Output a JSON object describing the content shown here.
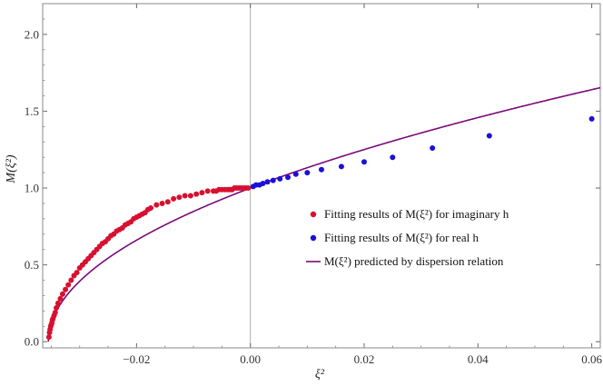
{
  "chart_data": {
    "type": "scatter",
    "xlabel": "ξ²",
    "ylabel": "M(ξ²)",
    "xlim": [
      -0.0365,
      0.0615
    ],
    "ylim": [
      -0.04,
      2.2
    ],
    "x_ticks": [
      -0.02,
      0.0,
      0.02,
      0.04,
      0.06
    ],
    "y_ticks": [
      0.0,
      0.5,
      1.0,
      1.5,
      2.0
    ],
    "x_tick_labels": [
      "−0.02",
      "0.00",
      "0.02",
      "0.04",
      "0.06"
    ],
    "y_tick_labels": [
      "0.0",
      "0.5",
      "1.0",
      "1.5",
      "2.0"
    ],
    "grid": false,
    "reference_line_x": 0.0,
    "legend_position": "center-right",
    "curve_formula_note_hidden": true,
    "x0": -0.0355,
    "series": [
      {
        "name": "Fitting results of M(ξ²) for imaginary h",
        "kind": "scatter",
        "color": "#d81030",
        "x": [
          -0.0354,
          -0.0353,
          -0.0352,
          -0.0351,
          -0.035,
          -0.0349,
          -0.0348,
          -0.0347,
          -0.0345,
          -0.0343,
          -0.0341,
          -0.0338,
          -0.0334,
          -0.033,
          -0.0325,
          -0.032,
          -0.0315,
          -0.031,
          -0.0305,
          -0.03,
          -0.0295,
          -0.029,
          -0.0285,
          -0.028,
          -0.0275,
          -0.027,
          -0.0265,
          -0.026,
          -0.0255,
          -0.025,
          -0.0245,
          -0.024,
          -0.0235,
          -0.023,
          -0.0225,
          -0.022,
          -0.0215,
          -0.021,
          -0.0205,
          -0.02,
          -0.0195,
          -0.019,
          -0.0185,
          -0.018,
          -0.0175,
          -0.0165,
          -0.0155,
          -0.0145,
          -0.0135,
          -0.0125,
          -0.0115,
          -0.0105,
          -0.0095,
          -0.0085,
          -0.0075,
          -0.0065,
          -0.006,
          -0.0055,
          -0.005,
          -0.0045,
          -0.004,
          -0.0036,
          -0.0032,
          -0.0028,
          -0.0024,
          -0.002,
          -0.0016,
          -0.0012,
          -0.0008,
          -0.0004
        ],
        "y": [
          0.03,
          0.06,
          0.08,
          0.1,
          0.11,
          0.12,
          0.14,
          0.15,
          0.17,
          0.19,
          0.22,
          0.25,
          0.28,
          0.31,
          0.34,
          0.37,
          0.4,
          0.43,
          0.45,
          0.48,
          0.5,
          0.52,
          0.54,
          0.56,
          0.58,
          0.6,
          0.62,
          0.64,
          0.65,
          0.67,
          0.69,
          0.7,
          0.72,
          0.73,
          0.74,
          0.76,
          0.77,
          0.78,
          0.8,
          0.81,
          0.82,
          0.83,
          0.84,
          0.86,
          0.87,
          0.89,
          0.9,
          0.91,
          0.93,
          0.94,
          0.95,
          0.95,
          0.96,
          0.97,
          0.98,
          0.98,
          0.98,
          0.99,
          0.99,
          0.99,
          0.99,
          0.99,
          0.99,
          1.0,
          1.0,
          1.0,
          1.0,
          1.0,
          1.0,
          1.0
        ]
      },
      {
        "name": "Fitting results of M(ξ²) for real h",
        "kind": "scatter",
        "color": "#1a10d8",
        "x": [
          0.0005,
          0.001,
          0.0016,
          0.0022,
          0.003,
          0.004,
          0.0052,
          0.0066,
          0.008,
          0.01,
          0.0125,
          0.016,
          0.02,
          0.025,
          0.032,
          0.042,
          0.06
        ],
        "y": [
          1.01,
          1.02,
          1.02,
          1.03,
          1.04,
          1.05,
          1.06,
          1.07,
          1.09,
          1.1,
          1.12,
          1.14,
          1.17,
          1.2,
          1.26,
          1.34,
          1.45
        ]
      },
      {
        "name": "M(ξ²) predicted by dispersion relation",
        "kind": "line",
        "color": "#7a0a7a"
      }
    ]
  }
}
